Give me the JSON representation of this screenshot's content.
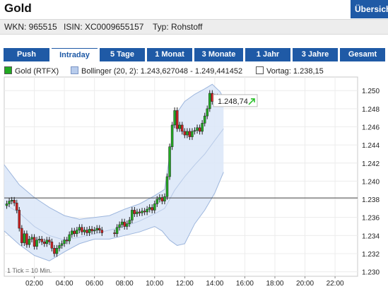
{
  "header": {
    "title": "Gold",
    "overview_button": "Übersicht",
    "wkn": "WKN: 965515",
    "isin": "ISIN: XC0009655157",
    "typ": "Typ: Rohstoff"
  },
  "tabs": [
    {
      "label": "Push",
      "active": false
    },
    {
      "label": "Intraday",
      "active": true
    },
    {
      "label": "5 Tage",
      "active": false
    },
    {
      "label": "1 Monat",
      "active": false
    },
    {
      "label": "3 Monate",
      "active": false
    },
    {
      "label": "1 Jahr",
      "active": false
    },
    {
      "label": "3 Jahre",
      "active": false
    },
    {
      "label": "Gesamt",
      "active": false
    }
  ],
  "legend": {
    "gold": "Gold (RTFX)",
    "bollinger": "Bollinger (20, 2): 1.243,627048 - 1.249,441452",
    "vortag": "Vortag: 1.238,15"
  },
  "colors": {
    "accent": "#1f5aa6",
    "gold_swatch": "#22aa22",
    "band_fill": "#dde8f8",
    "band_line": "#9db6dd",
    "up_arrow": "#2cc02c"
  },
  "chart_data": {
    "type": "candlestick",
    "ylim": [
      1.2295,
      1.2515
    ],
    "xlim_minutes": [
      0,
      1410
    ],
    "yticks": [
      "1.250",
      "1.248",
      "1.246",
      "1.244",
      "1.242",
      "1.240",
      "1.238",
      "1.236",
      "1.234",
      "1.232",
      "1.230"
    ],
    "xticks": [
      "02:00",
      "04:00",
      "06:00",
      "08:00",
      "10:00",
      "12:00",
      "14:00",
      "16:00",
      "18:00",
      "20:00",
      "22:00"
    ],
    "xtick_minutes": [
      120,
      240,
      360,
      480,
      600,
      720,
      840,
      960,
      1080,
      1200,
      1320
    ],
    "previous_close": 1.23815,
    "last_value_label": "1.248,74",
    "tick_note": "1 Tick = 10 Min.",
    "close_series": [
      {
        "t": 10,
        "c": 1.2375
      },
      {
        "t": 20,
        "c": 1.2378
      },
      {
        "t": 30,
        "c": 1.2379
      },
      {
        "t": 40,
        "c": 1.2376
      },
      {
        "t": 50,
        "c": 1.2368
      },
      {
        "t": 60,
        "c": 1.2348
      },
      {
        "t": 70,
        "c": 1.2332
      },
      {
        "t": 80,
        "c": 1.2342
      },
      {
        "t": 90,
        "c": 1.233
      },
      {
        "t": 100,
        "c": 1.2336
      },
      {
        "t": 110,
        "c": 1.2338
      },
      {
        "t": 120,
        "c": 1.2328
      },
      {
        "t": 130,
        "c": 1.2335
      },
      {
        "t": 140,
        "c": 1.2336
      },
      {
        "t": 150,
        "c": 1.2333
      },
      {
        "t": 160,
        "c": 1.2331
      },
      {
        "t": 170,
        "c": 1.2335
      },
      {
        "t": 180,
        "c": 1.2333
      },
      {
        "t": 190,
        "c": 1.2326
      },
      {
        "t": 200,
        "c": 1.232
      },
      {
        "t": 210,
        "c": 1.2326
      },
      {
        "t": 220,
        "c": 1.2329
      },
      {
        "t": 230,
        "c": 1.2331
      },
      {
        "t": 240,
        "c": 1.2335
      },
      {
        "t": 250,
        "c": 1.2334
      },
      {
        "t": 260,
        "c": 1.2341
      },
      {
        "t": 270,
        "c": 1.2345
      },
      {
        "t": 280,
        "c": 1.2342
      },
      {
        "t": 290,
        "c": 1.2346
      },
      {
        "t": 300,
        "c": 1.2349
      },
      {
        "t": 310,
        "c": 1.2344
      },
      {
        "t": 320,
        "c": 1.2346
      },
      {
        "t": 330,
        "c": 1.2343
      },
      {
        "t": 340,
        "c": 1.2347
      },
      {
        "t": 350,
        "c": 1.2345
      },
      {
        "t": 360,
        "c": 1.2346
      },
      {
        "t": 370,
        "c": 1.2348
      },
      {
        "t": 380,
        "c": 1.2346
      },
      {
        "t": 390,
        "c": 1.2343
      },
      {
        "t": 440,
        "c": 1.2342
      },
      {
        "t": 450,
        "c": 1.2349
      },
      {
        "t": 460,
        "c": 1.2352
      },
      {
        "t": 470,
        "c": 1.2355
      },
      {
        "t": 480,
        "c": 1.235
      },
      {
        "t": 490,
        "c": 1.2353
      },
      {
        "t": 500,
        "c": 1.2357
      },
      {
        "t": 510,
        "c": 1.2368
      },
      {
        "t": 520,
        "c": 1.2364
      },
      {
        "t": 530,
        "c": 1.2366
      },
      {
        "t": 540,
        "c": 1.2365
      },
      {
        "t": 550,
        "c": 1.2367
      },
      {
        "t": 560,
        "c": 1.2366
      },
      {
        "t": 570,
        "c": 1.2369
      },
      {
        "t": 580,
        "c": 1.2371
      },
      {
        "t": 590,
        "c": 1.2368
      },
      {
        "t": 600,
        "c": 1.2375
      },
      {
        "t": 610,
        "c": 1.238
      },
      {
        "t": 620,
        "c": 1.2382
      },
      {
        "t": 630,
        "c": 1.2378
      },
      {
        "t": 640,
        "c": 1.2383
      },
      {
        "t": 650,
        "c": 1.2405
      },
      {
        "t": 660,
        "c": 1.2438
      },
      {
        "t": 670,
        "c": 1.2462
      },
      {
        "t": 680,
        "c": 1.2478
      },
      {
        "t": 690,
        "c": 1.2458
      },
      {
        "t": 700,
        "c": 1.2462
      },
      {
        "t": 710,
        "c": 1.2455
      },
      {
        "t": 720,
        "c": 1.2451
      },
      {
        "t": 730,
        "c": 1.2455
      },
      {
        "t": 740,
        "c": 1.2449
      },
      {
        "t": 750,
        "c": 1.2455
      },
      {
        "t": 760,
        "c": 1.2456
      },
      {
        "t": 770,
        "c": 1.2459
      },
      {
        "t": 780,
        "c": 1.2455
      },
      {
        "t": 790,
        "c": 1.2464
      },
      {
        "t": 800,
        "c": 1.2472
      },
      {
        "t": 810,
        "c": 1.248
      },
      {
        "t": 820,
        "c": 1.2497
      },
      {
        "t": 830,
        "c": 1.2488
      },
      {
        "t": 840,
        "c": 1.2493
      },
      {
        "t": 850,
        "c": 1.2487
      }
    ],
    "bollinger_upper": [
      {
        "t": 0,
        "v": 1.2418
      },
      {
        "t": 60,
        "v": 1.2396
      },
      {
        "t": 120,
        "v": 1.2382
      },
      {
        "t": 180,
        "v": 1.2371
      },
      {
        "t": 240,
        "v": 1.2362
      },
      {
        "t": 300,
        "v": 1.2358
      },
      {
        "t": 360,
        "v": 1.236
      },
      {
        "t": 420,
        "v": 1.2362
      },
      {
        "t": 480,
        "v": 1.2369
      },
      {
        "t": 540,
        "v": 1.2375
      },
      {
        "t": 600,
        "v": 1.2384
      },
      {
        "t": 640,
        "v": 1.2391
      },
      {
        "t": 660,
        "v": 1.2428
      },
      {
        "t": 680,
        "v": 1.2472
      },
      {
        "t": 720,
        "v": 1.2488
      },
      {
        "t": 760,
        "v": 1.2496
      },
      {
        "t": 800,
        "v": 1.2502
      },
      {
        "t": 830,
        "v": 1.2507
      },
      {
        "t": 860,
        "v": 1.2499
      },
      {
        "t": 875,
        "v": 1.2492
      }
    ],
    "bollinger_middle": [
      {
        "t": 0,
        "v": 1.2375
      },
      {
        "t": 60,
        "v": 1.2365
      },
      {
        "t": 120,
        "v": 1.235
      },
      {
        "t": 180,
        "v": 1.234
      },
      {
        "t": 240,
        "v": 1.2335
      },
      {
        "t": 300,
        "v": 1.2338
      },
      {
        "t": 360,
        "v": 1.2342
      },
      {
        "t": 420,
        "v": 1.2346
      },
      {
        "t": 480,
        "v": 1.235
      },
      {
        "t": 540,
        "v": 1.2356
      },
      {
        "t": 600,
        "v": 1.2364
      },
      {
        "t": 640,
        "v": 1.237
      },
      {
        "t": 680,
        "v": 1.239
      },
      {
        "t": 720,
        "v": 1.2405
      },
      {
        "t": 760,
        "v": 1.2418
      },
      {
        "t": 800,
        "v": 1.243
      },
      {
        "t": 840,
        "v": 1.2445
      },
      {
        "t": 875,
        "v": 1.2458
      }
    ],
    "bollinger_lower": [
      {
        "t": 0,
        "v": 1.2345
      },
      {
        "t": 60,
        "v": 1.233
      },
      {
        "t": 120,
        "v": 1.2318
      },
      {
        "t": 180,
        "v": 1.2312
      },
      {
        "t": 240,
        "v": 1.2322
      },
      {
        "t": 300,
        "v": 1.2331
      },
      {
        "t": 360,
        "v": 1.2336
      },
      {
        "t": 420,
        "v": 1.2336
      },
      {
        "t": 480,
        "v": 1.234
      },
      {
        "t": 540,
        "v": 1.2344
      },
      {
        "t": 600,
        "v": 1.235
      },
      {
        "t": 630,
        "v": 1.2345
      },
      {
        "t": 660,
        "v": 1.2335
      },
      {
        "t": 690,
        "v": 1.2329
      },
      {
        "t": 720,
        "v": 1.2331
      },
      {
        "t": 760,
        "v": 1.2353
      },
      {
        "t": 800,
        "v": 1.2368
      },
      {
        "t": 840,
        "v": 1.2387
      },
      {
        "t": 875,
        "v": 1.241
      }
    ]
  }
}
